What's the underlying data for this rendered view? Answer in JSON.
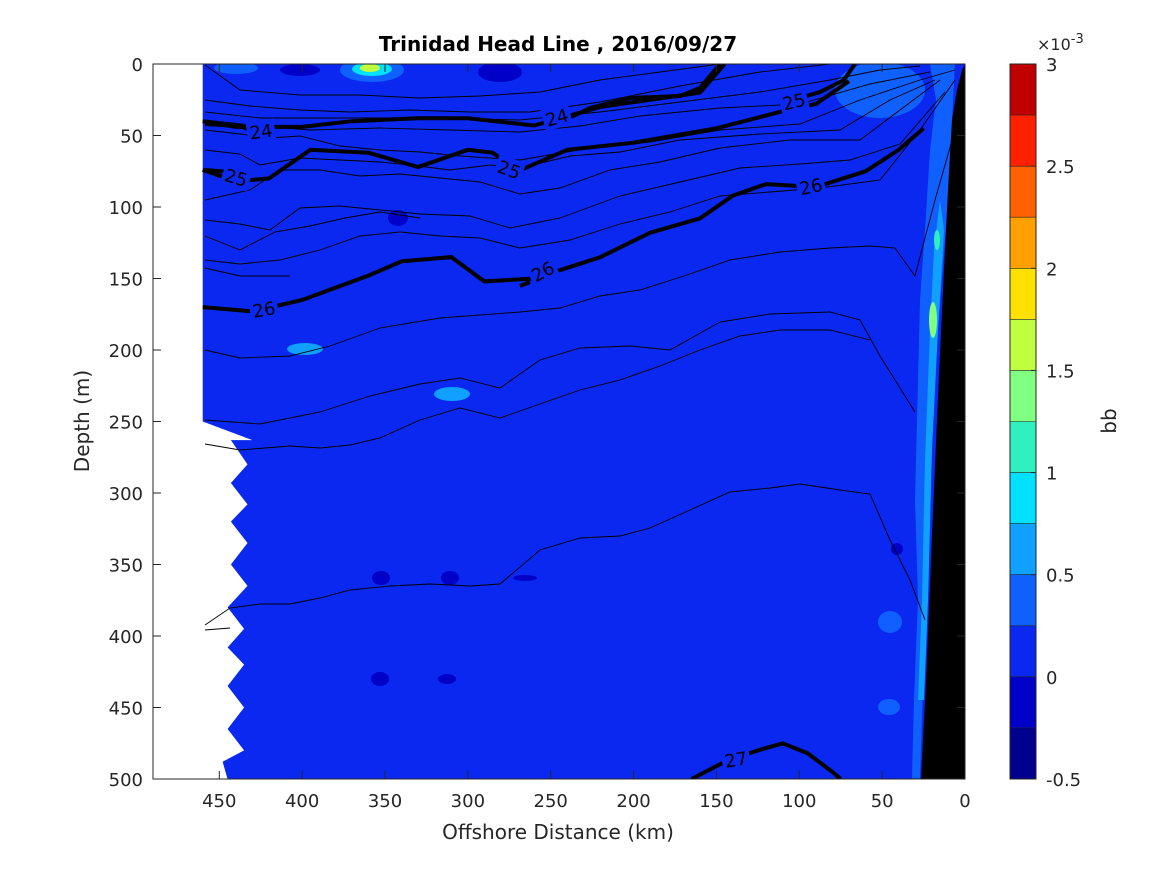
{
  "chart_data": {
    "type": "heatmap",
    "title": "Trinidad Head Line , 2016/09/27",
    "xlabel": "Offshore Distance (km)",
    "ylabel": "Depth (m)",
    "xlim": [
      490,
      0
    ],
    "ylim": [
      0,
      500
    ],
    "x_reversed": true,
    "y_reversed": true,
    "x_ticks": [
      450,
      400,
      350,
      300,
      250,
      200,
      150,
      100,
      50,
      0
    ],
    "y_ticks": [
      0,
      50,
      100,
      150,
      200,
      250,
      300,
      350,
      400,
      450,
      500
    ],
    "grid": false,
    "background_field_value": 0.1,
    "colorbar": {
      "label": "bb",
      "exponent_label": "×10",
      "exponent_power": "-3",
      "ticks": [
        "3",
        "2.5",
        "2",
        "1.5",
        "1",
        "0.5",
        "0",
        "-0.5"
      ],
      "tick_values": [
        3,
        2.5,
        2,
        1.5,
        1,
        0.5,
        0,
        -0.5
      ],
      "range": [
        -0.5,
        3
      ],
      "levels": [
        -0.5,
        -0.25,
        0,
        0.25,
        0.5,
        0.75,
        1,
        1.25,
        1.5,
        1.75,
        2,
        2.25,
        2.5,
        2.75,
        3
      ],
      "colors": [
        "#00008f",
        "#0000c8",
        "#0a28f0",
        "#1060ff",
        "#10a0ff",
        "#00e0ff",
        "#30f0c0",
        "#80ff80",
        "#c0ff40",
        "#ffe000",
        "#ffa000",
        "#ff6000",
        "#ff2000",
        "#c00000"
      ]
    },
    "contour_lines": [
      {
        "label": "24",
        "points": [
          [
            460,
            40
          ],
          [
            440,
            44
          ],
          [
            400,
            44
          ],
          [
            370,
            40
          ],
          [
            330,
            38
          ],
          [
            300,
            38
          ],
          [
            260,
            43
          ],
          [
            220,
            30
          ],
          [
            160,
            20
          ],
          [
            145,
            0
          ]
        ]
      },
      {
        "label": "24",
        "points": [
          [
            75,
            0
          ]
        ]
      },
      {
        "label": "25",
        "points": [
          [
            460,
            74
          ],
          [
            440,
            82
          ],
          [
            420,
            80
          ],
          [
            395,
            60
          ],
          [
            360,
            62
          ],
          [
            330,
            72
          ],
          [
            300,
            60
          ],
          [
            285,
            62
          ],
          [
            270,
            75
          ],
          [
            240,
            60
          ],
          [
            200,
            55
          ],
          [
            150,
            45
          ],
          [
            110,
            33
          ],
          [
            90,
            28
          ],
          [
            70,
            12
          ]
        ]
      },
      {
        "label": "26",
        "points": [
          [
            460,
            170
          ],
          [
            430,
            173
          ],
          [
            400,
            165
          ],
          [
            360,
            148
          ],
          [
            340,
            138
          ],
          [
            310,
            135
          ],
          [
            290,
            152
          ],
          [
            260,
            150
          ],
          [
            220,
            135
          ],
          [
            190,
            118
          ],
          [
            160,
            108
          ],
          [
            140,
            92
          ],
          [
            120,
            84
          ],
          [
            90,
            86
          ],
          [
            60,
            75
          ],
          [
            40,
            60
          ],
          [
            25,
            45
          ]
        ]
      },
      {
        "label": "27",
        "points": [
          [
            165,
            500
          ],
          [
            145,
            488
          ],
          [
            125,
            480
          ],
          [
            110,
            475
          ],
          [
            95,
            482
          ],
          [
            80,
            495
          ],
          [
            75,
            500
          ]
        ]
      }
    ]
  }
}
